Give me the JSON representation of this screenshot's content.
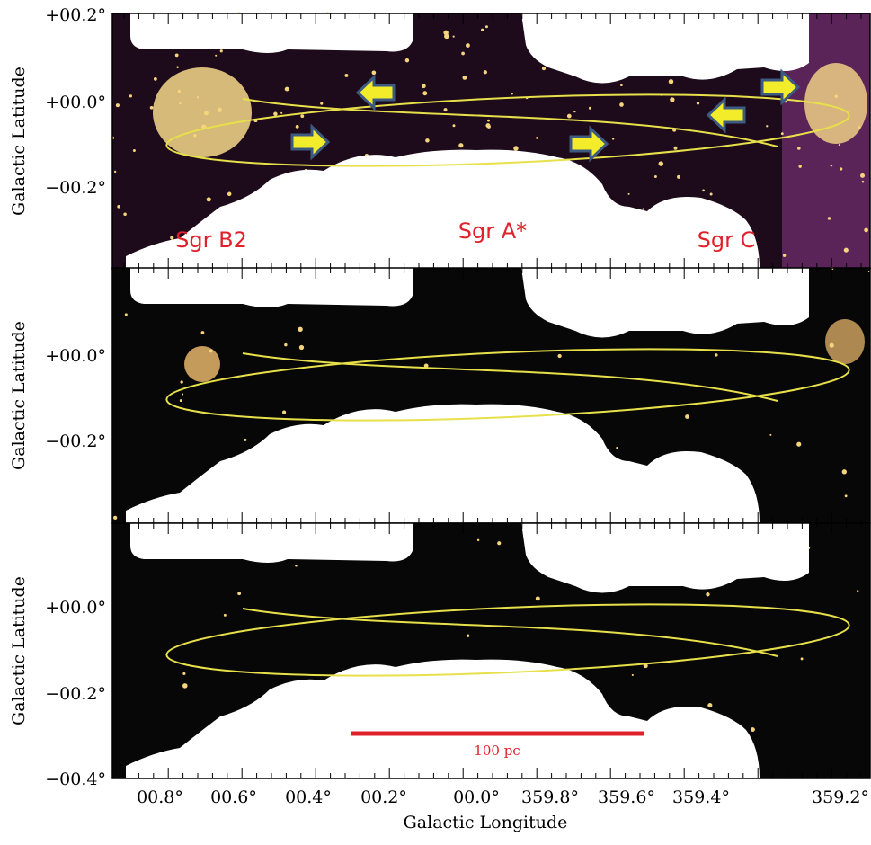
{
  "y_axis_title": "Galactic Latitude",
  "x_axis_title": "Galactic Longitude",
  "x_tick_labels": [
    "00.8°",
    "00.6°",
    "00.4°",
    "00.2°",
    "00.0°",
    "359.8°",
    "359.6°",
    "359.4°",
    "359.2°"
  ],
  "panels": [
    {
      "y_tick_labels": [
        "+00.2°",
        "+00.0°",
        "−00.2°"
      ],
      "annotations": [
        "Sgr B2",
        "Sgr A*",
        "Sgr C"
      ]
    },
    {
      "y_tick_labels": [
        "+00.0°",
        "−00.2°"
      ]
    },
    {
      "y_tick_labels": [
        "+00.0°",
        "−00.2°",
        "−00.4°"
      ],
      "scale_bar": "100 pc"
    }
  ]
}
